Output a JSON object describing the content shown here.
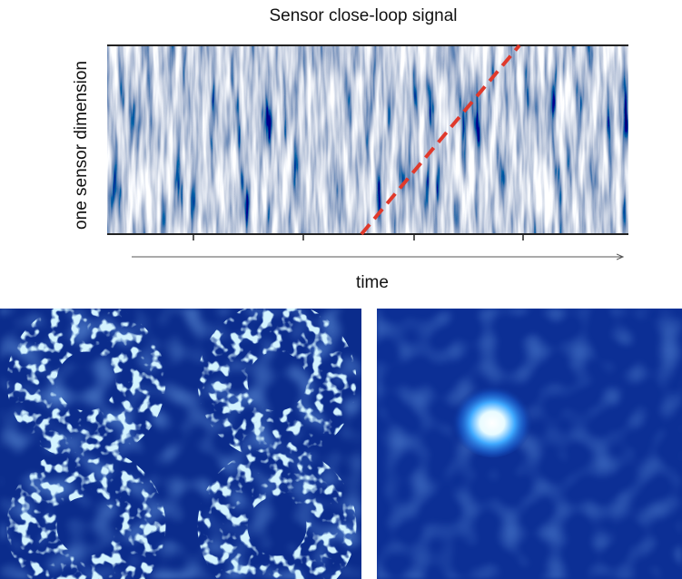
{
  "figure": {
    "title": "Sensor close-loop signal",
    "y_label": "one sensor dimension",
    "x_label": "time"
  }
}
